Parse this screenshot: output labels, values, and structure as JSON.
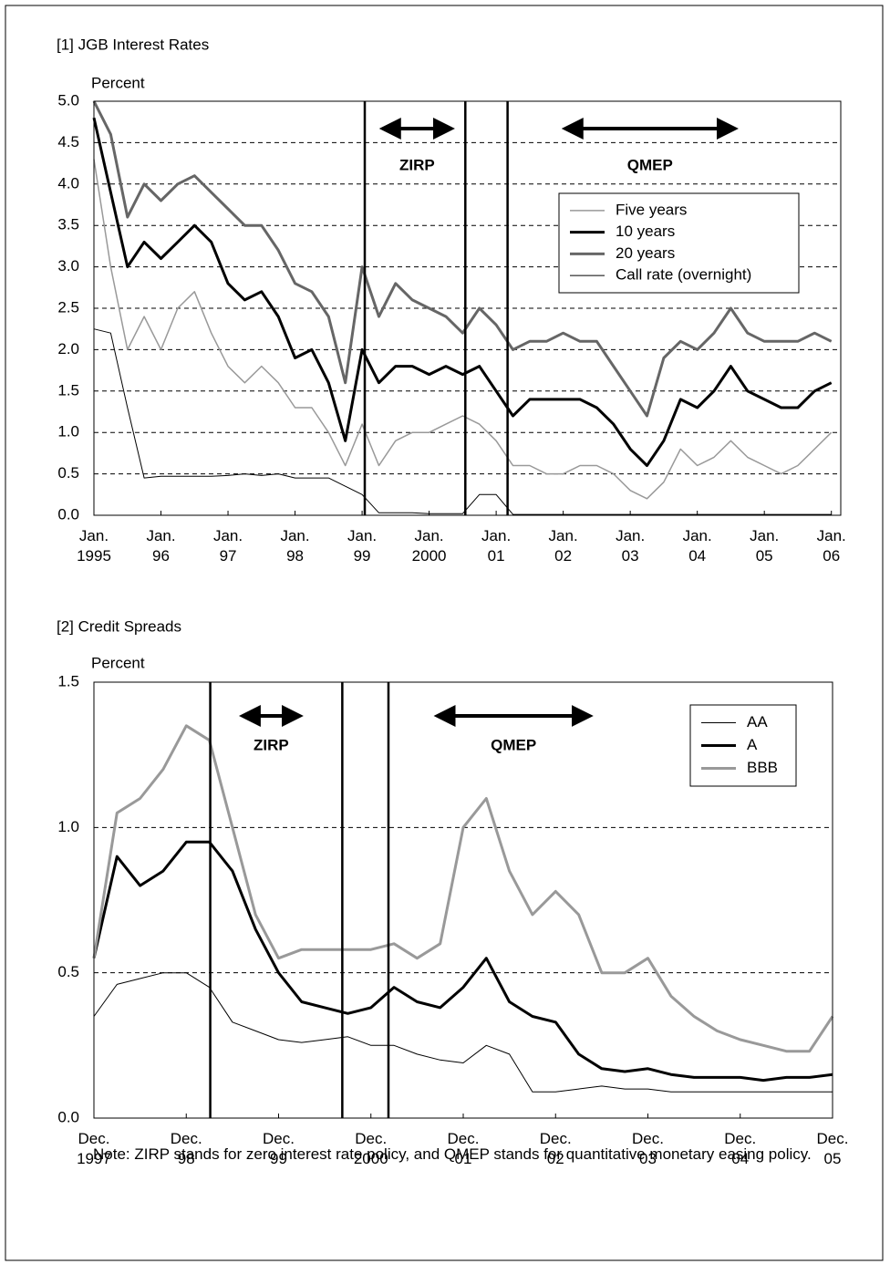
{
  "chart_data": [
    {
      "type": "line",
      "title": "[1] JGB Interest Rates",
      "y_label": "Percent",
      "x": [
        1995,
        1995.25,
        1995.5,
        1995.75,
        1996,
        1996.25,
        1996.5,
        1996.75,
        1997,
        1997.25,
        1997.5,
        1997.75,
        1998,
        1998.25,
        1998.5,
        1998.75,
        1999,
        1999.25,
        1999.5,
        1999.75,
        2000,
        2000.25,
        2000.5,
        2000.75,
        2001,
        2001.25,
        2001.5,
        2001.75,
        2002,
        2002.25,
        2002.5,
        2002.75,
        2003,
        2003.25,
        2003.5,
        2003.75,
        2004,
        2004.25,
        2004.5,
        2004.75,
        2005,
        2005.25,
        2005.5,
        2005.75,
        2006
      ],
      "series": [
        {
          "name": "Five years",
          "color": "#999999",
          "linewidth": 1.5,
          "values": [
            4.3,
            3.0,
            2.0,
            2.4,
            2.0,
            2.5,
            2.7,
            2.2,
            1.8,
            1.6,
            1.8,
            1.6,
            1.3,
            1.3,
            1.0,
            0.6,
            1.1,
            0.6,
            0.9,
            1.0,
            1.0,
            1.1,
            1.2,
            1.1,
            0.9,
            0.6,
            0.6,
            0.5,
            0.5,
            0.6,
            0.6,
            0.5,
            0.3,
            0.2,
            0.4,
            0.8,
            0.6,
            0.7,
            0.9,
            0.7,
            0.6,
            0.5,
            0.6,
            0.8,
            1.0
          ]
        },
        {
          "name": "10 years",
          "color": "#000000",
          "linewidth": 3,
          "values": [
            4.8,
            3.9,
            3.0,
            3.3,
            3.1,
            3.3,
            3.5,
            3.3,
            2.8,
            2.6,
            2.7,
            2.4,
            1.9,
            2.0,
            1.6,
            0.9,
            2.0,
            1.6,
            1.8,
            1.8,
            1.7,
            1.8,
            1.7,
            1.8,
            1.5,
            1.2,
            1.4,
            1.4,
            1.4,
            1.4,
            1.3,
            1.1,
            0.8,
            0.6,
            0.9,
            1.4,
            1.3,
            1.5,
            1.8,
            1.5,
            1.4,
            1.3,
            1.3,
            1.5,
            1.6
          ]
        },
        {
          "name": "20 years",
          "color": "#666666",
          "linewidth": 3,
          "values": [
            5.0,
            4.6,
            3.6,
            4.0,
            3.8,
            4.0,
            4.1,
            3.9,
            3.7,
            3.5,
            3.5,
            3.2,
            2.8,
            2.7,
            2.4,
            1.6,
            3.0,
            2.4,
            2.8,
            2.6,
            2.5,
            2.4,
            2.2,
            2.5,
            2.3,
            2.0,
            2.1,
            2.1,
            2.2,
            2.1,
            2.1,
            1.8,
            1.5,
            1.2,
            1.9,
            2.1,
            2.0,
            2.2,
            2.5,
            2.2,
            2.1,
            2.1,
            2.1,
            2.2,
            2.1
          ]
        },
        {
          "name": "Call rate (overnight)",
          "color": "#000000",
          "linewidth": 1,
          "values": [
            2.25,
            2.2,
            1.3,
            0.45,
            0.47,
            0.47,
            0.47,
            0.47,
            0.48,
            0.5,
            0.48,
            0.5,
            0.45,
            0.45,
            0.45,
            0.35,
            0.25,
            0.03,
            0.03,
            0.03,
            0.02,
            0.02,
            0.02,
            0.25,
            0.25,
            0.01,
            0.01,
            0.01,
            0.01,
            0.01,
            0.01,
            0.01,
            0.01,
            0.01,
            0.01,
            0.01,
            0.01,
            0.01,
            0.01,
            0.01,
            0.01,
            0.01,
            0.01,
            0.01,
            0.01
          ]
        }
      ],
      "xlim": [
        1995,
        2006.14
      ],
      "xticks": [
        {
          "value": 1995,
          "label": "Jan.\n1995"
        },
        {
          "value": 1996,
          "label": "Jan.\n96"
        },
        {
          "value": 1997,
          "label": "Jan.\n97"
        },
        {
          "value": 1998,
          "label": "Jan.\n98"
        },
        {
          "value": 1999,
          "label": "Jan.\n99"
        },
        {
          "value": 2000,
          "label": "Jan.\n2000"
        },
        {
          "value": 2001,
          "label": "Jan.\n01"
        },
        {
          "value": 2002,
          "label": "Jan.\n02"
        },
        {
          "value": 2003,
          "label": "Jan.\n03"
        },
        {
          "value": 2004,
          "label": "Jan.\n04"
        },
        {
          "value": 2005,
          "label": "Jan.\n05"
        },
        {
          "value": 2006,
          "label": "Jan.\n06"
        }
      ],
      "ylim": [
        0,
        5
      ],
      "yticks": [
        {
          "value": 0,
          "label": "0.0"
        },
        0.5,
        {
          "value": 1,
          "label": "1.0"
        },
        1.5,
        {
          "value": 2,
          "label": "2.0"
        },
        2.5,
        {
          "value": 3,
          "label": "3.0"
        },
        3.5,
        {
          "value": 4,
          "label": "4.0"
        },
        4.5,
        {
          "value": 5,
          "label": "5.0"
        }
      ],
      "grid": true,
      "legend": "upper right",
      "vlines": [
        1999.04,
        2000.54,
        2001.17
      ],
      "annotations": [
        {
          "text": "ZIRP",
          "x": [
            1999.2,
            2000.44
          ]
        },
        {
          "text": "QMEP",
          "x": [
            2001.92,
            2004.67
          ]
        }
      ]
    },
    {
      "type": "line",
      "title": "[2] Credit Spreads",
      "y_label": "Percent",
      "x": [
        1997.92,
        1998.17,
        1998.42,
        1998.67,
        1998.92,
        1999.17,
        1999.42,
        1999.67,
        1999.92,
        2000.17,
        2000.42,
        2000.67,
        2000.92,
        2001.17,
        2001.42,
        2001.67,
        2001.92,
        2002.17,
        2002.42,
        2002.67,
        2002.92,
        2003.17,
        2003.42,
        2003.67,
        2003.92,
        2004.17,
        2004.42,
        2004.67,
        2004.92,
        2005.17,
        2005.42,
        2005.67,
        2005.92
      ],
      "series": [
        {
          "name": "AA",
          "color": "#000000",
          "linewidth": 1,
          "values": [
            0.35,
            0.46,
            0.48,
            0.5,
            0.5,
            0.45,
            0.33,
            0.3,
            0.27,
            0.26,
            0.27,
            0.28,
            0.25,
            0.25,
            0.22,
            0.2,
            0.19,
            0.25,
            0.22,
            0.09,
            0.09,
            0.1,
            0.11,
            0.1,
            0.1,
            0.09,
            0.09,
            0.09,
            0.09,
            0.09,
            0.09,
            0.09,
            0.09
          ]
        },
        {
          "name": "A",
          "color": "#000000",
          "linewidth": 3,
          "values": [
            0.55,
            0.9,
            0.8,
            0.85,
            0.95,
            0.95,
            0.85,
            0.65,
            0.5,
            0.4,
            0.38,
            0.36,
            0.38,
            0.45,
            0.4,
            0.38,
            0.45,
            0.55,
            0.4,
            0.35,
            0.33,
            0.22,
            0.17,
            0.16,
            0.17,
            0.15,
            0.14,
            0.14,
            0.14,
            0.13,
            0.14,
            0.14,
            0.15
          ]
        },
        {
          "name": "BBB",
          "color": "#999999",
          "linewidth": 3,
          "values": [
            0.55,
            1.05,
            1.1,
            1.2,
            1.35,
            1.3,
            1.0,
            0.7,
            0.55,
            0.58,
            0.58,
            0.58,
            0.58,
            0.6,
            0.55,
            0.6,
            1.0,
            1.1,
            0.85,
            0.7,
            0.78,
            0.7,
            0.5,
            0.5,
            0.55,
            0.42,
            0.35,
            0.3,
            0.27,
            0.25,
            0.23,
            0.23,
            0.35
          ]
        }
      ],
      "xlim": [
        1997.92,
        2005.92
      ],
      "xticks": [
        {
          "value": 1997.92,
          "label": "Dec.\n1997"
        },
        {
          "value": 1998.92,
          "label": "Dec.\n98"
        },
        {
          "value": 1999.92,
          "label": "Dec.\n99"
        },
        {
          "value": 2000.92,
          "label": "Dec.\n2000"
        },
        {
          "value": 2001.92,
          "label": "Dec.\n01"
        },
        {
          "value": 2002.92,
          "label": "Dec.\n02"
        },
        {
          "value": 2003.92,
          "label": "Dec.\n03"
        },
        {
          "value": 2004.92,
          "label": "Dec.\n04"
        },
        {
          "value": 2005.92,
          "label": "Dec.\n05"
        }
      ],
      "ylim": [
        0,
        1.5
      ],
      "yticks": [
        {
          "value": 0,
          "label": "0.0"
        },
        0.5,
        {
          "value": 1,
          "label": "1.0"
        },
        1.5
      ],
      "grid": true,
      "legend": "upper right",
      "vlines": [
        1999.18,
        2000.61,
        2001.11
      ],
      "annotations": [
        {
          "text": "ZIRP",
          "x": [
            1999.45,
            2000.23
          ]
        },
        {
          "text": "QMEP",
          "x": [
            2001.56,
            2003.37
          ]
        }
      ]
    }
  ],
  "note": "Note: ZIRP stands for zero interest rate policy, and QMEP stands for quantitative monetary easing policy."
}
